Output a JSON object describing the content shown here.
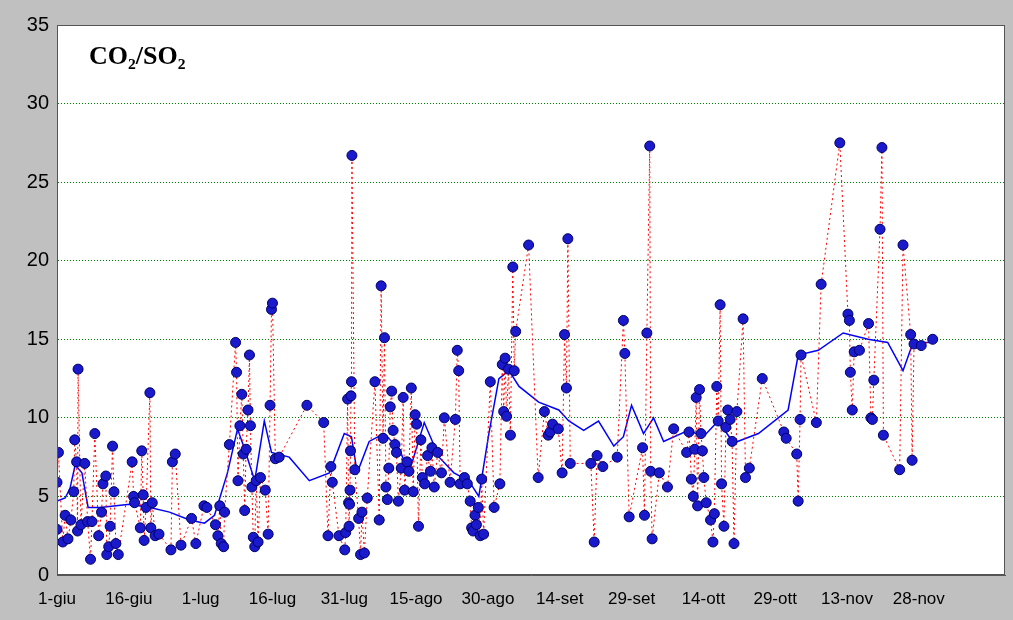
{
  "chart_data": {
    "type": "scatter",
    "title": "CO₂/SO₂",
    "xlim": [
      0,
      198
    ],
    "xticks": [
      {
        "value": 0,
        "label": "1-giu"
      },
      {
        "value": 15,
        "label": "16-giu"
      },
      {
        "value": 30,
        "label": "1-lug"
      },
      {
        "value": 45,
        "label": "16-lug"
      },
      {
        "value": 60,
        "label": "31-lug"
      },
      {
        "value": 75,
        "label": "15-ago"
      },
      {
        "value": 90,
        "label": "30-ago"
      },
      {
        "value": 105,
        "label": "14-set"
      },
      {
        "value": 120,
        "label": "29-set"
      },
      {
        "value": 135,
        "label": "14-ott"
      },
      {
        "value": 150,
        "label": "29-ott"
      },
      {
        "value": 165,
        "label": "13-nov"
      },
      {
        "value": 180,
        "label": "28-nov"
      }
    ],
    "ylim": [
      0,
      35
    ],
    "yticks": [
      0,
      5,
      10,
      15,
      20,
      25,
      30,
      35
    ],
    "grid": true,
    "series": [
      {
        "type": "scatter",
        "color": "#1a1acc",
        "marker": "circle",
        "line_style": "dotted",
        "x": [
          0,
          0,
          0.3,
          1.2,
          1.7,
          2.3,
          2.9,
          3.5,
          3.7,
          4.1,
          4.3,
          4.4,
          5.0,
          5.8,
          6.4,
          7.0,
          7.3,
          7.9,
          8.7,
          9.3,
          9.6,
          10.2,
          10.4,
          10.8,
          11.1,
          11.6,
          11.9,
          12.3,
          12.8,
          15.7,
          16.0,
          16.2,
          17.4,
          17.7,
          18.0,
          18.2,
          18.6,
          19.4,
          19.6,
          19.9,
          20.5,
          21.3,
          23.8,
          24.1,
          24.7,
          25.9,
          28.1,
          29.0,
          30.7,
          31.3,
          33.1,
          33.6,
          34.0,
          34.3,
          34.8,
          35.0,
          36.0,
          37.3,
          37.5,
          37.8,
          38.2,
          38.6,
          38.9,
          39.2,
          39.5,
          39.9,
          40.2,
          40.4,
          40.7,
          41.0,
          41.3,
          41.6,
          42.0,
          42.5,
          43.5,
          44.1,
          44.5,
          44.8,
          45.0,
          45.6,
          46.4,
          52.2,
          55.7,
          56.6,
          57.2,
          57.5,
          58.9,
          60.1,
          60.3,
          60.7,
          60.9,
          61.0,
          61.1,
          61.2,
          61.3,
          61.4,
          61.5,
          61.6,
          62.2,
          63.0,
          63.4,
          63.7,
          64.2,
          64.8,
          66.4,
          67.3,
          67.7,
          68.1,
          68.4,
          68.7,
          69.0,
          69.3,
          69.6,
          69.9,
          70.2,
          70.6,
          70.9,
          71.3,
          71.9,
          72.3,
          72.6,
          73.1,
          73.5,
          74.0,
          74.4,
          74.8,
          75.1,
          75.5,
          76.0,
          76.3,
          76.8,
          77.4,
          78.0,
          78.3,
          78.8,
          79.5,
          80.3,
          80.9,
          82.1,
          83.2,
          83.6,
          83.9,
          84.2,
          85.1,
          85.7,
          86.3,
          86.6,
          86.9,
          87.3,
          87.6,
          88.0,
          88.4,
          88.7,
          89.1,
          90.5,
          91.3,
          92.5,
          93.0,
          93.3,
          93.6,
          93.9,
          94.3,
          94.7,
          95.2,
          95.5,
          95.8,
          98.5,
          100.5,
          101.8,
          102.6,
          103.0,
          103.5,
          104.7,
          105.5,
          106.0,
          106.4,
          106.7,
          107.2,
          111.5,
          112.2,
          112.8,
          114.0,
          117.0,
          118.3,
          118.6,
          119.5,
          122.3,
          122.7,
          123.2,
          123.8,
          124.0,
          124.3,
          125.8,
          127.5,
          128.8,
          131.5,
          132.0,
          132.5,
          132.9,
          133.2,
          133.5,
          133.8,
          134.2,
          134.5,
          134.8,
          135.1,
          135.6,
          136.5,
          137.0,
          137.3,
          137.8,
          138.1,
          138.5,
          138.8,
          139.3,
          139.7,
          140.1,
          140.6,
          141.0,
          141.4,
          142.0,
          143.3,
          143.8,
          144.6,
          147.3,
          151.8,
          152.3,
          154.5,
          154.8,
          155.2,
          155.4,
          158.6,
          159.6,
          163.5,
          165.2,
          165.5,
          165.7,
          166.1,
          166.5,
          167.6,
          169.5,
          170.0,
          170.3,
          170.6,
          171.9,
          172.3,
          172.6,
          176.0,
          176.7,
          178.3,
          178.6,
          179.0,
          180.5,
          182.9
        ],
        "values": [
          2.9,
          5.9,
          7.8,
          2.1,
          3.8,
          2.3,
          3.5,
          5.3,
          8.6,
          7.2,
          2.8,
          13.1,
          3.2,
          7.1,
          3.4,
          1.0,
          3.4,
          9.0,
          2.5,
          4.0,
          5.8,
          6.3,
          1.3,
          1.8,
          3.1,
          8.2,
          5.3,
          2.0,
          1.3,
          7.2,
          5.0,
          4.6,
          3.0,
          7.9,
          5.1,
          2.2,
          4.3,
          11.6,
          3.0,
          4.6,
          2.5,
          2.6,
          1.6,
          7.2,
          7.7,
          1.9,
          3.6,
          2.0,
          4.4,
          4.3,
          3.2,
          2.5,
          4.4,
          2.0,
          1.8,
          4.0,
          8.3,
          14.8,
          12.9,
          6.0,
          9.5,
          11.5,
          7.7,
          4.1,
          8.0,
          10.5,
          14.0,
          9.5,
          5.6,
          2.4,
          1.8,
          6.0,
          2.1,
          6.2,
          5.4,
          2.6,
          10.8,
          16.9,
          17.3,
          7.4,
          7.5,
          10.8,
          9.7,
          2.5,
          6.9,
          5.9,
          2.5,
          1.6,
          2.7,
          11.2,
          4.6,
          3.1,
          4.5,
          5.4,
          7.9,
          11.4,
          12.3,
          26.7,
          6.7,
          3.6,
          1.3,
          4.0,
          1.4,
          4.9,
          12.3,
          3.5,
          18.4,
          8.7,
          15.1,
          5.6,
          4.8,
          6.8,
          10.7,
          11.7,
          9.2,
          8.3,
          7.8,
          4.7,
          6.8,
          11.3,
          5.4,
          7.2,
          6.6,
          11.9,
          5.3,
          10.2,
          9.6,
          3.1,
          8.6,
          6.2,
          5.8,
          7.6,
          6.6,
          8.1,
          5.6,
          7.8,
          6.5,
          10.0,
          5.9,
          9.9,
          14.3,
          13.0,
          5.8,
          6.2,
          5.8,
          4.7,
          3.0,
          2.8,
          3.8,
          3.2,
          4.3,
          2.5,
          6.1,
          2.6,
          12.3,
          4.3,
          5.8,
          13.4,
          10.4,
          13.8,
          10.1,
          13.1,
          8.9,
          19.6,
          13.0,
          15.5,
          21.0,
          6.2,
          10.4,
          8.9,
          9.1,
          9.6,
          9.3,
          6.5,
          15.3,
          11.9,
          21.4,
          7.1,
          7.1,
          2.1,
          7.6,
          6.9,
          7.5,
          16.2,
          14.1,
          3.7,
          8.1,
          3.8,
          15.4,
          27.3,
          6.6,
          2.3,
          6.5,
          5.6,
          9.3,
          7.8,
          9.1,
          6.1,
          5.0,
          8.0,
          11.3,
          4.4,
          11.8,
          9.0,
          7.9,
          6.2,
          4.6,
          3.5,
          2.1,
          3.9,
          12.0,
          9.8,
          17.2,
          5.8,
          3.1,
          9.4,
          10.5,
          9.9,
          8.5,
          2.0,
          10.4,
          16.3,
          6.2,
          6.8,
          12.5,
          9.1,
          8.7,
          7.7,
          4.7,
          9.9,
          14.0,
          9.7,
          18.5,
          27.5,
          16.6,
          16.2,
          12.9,
          10.5,
          14.2,
          14.3,
          16.0,
          10.0,
          9.9,
          12.4,
          22.0,
          27.2,
          8.9,
          6.7,
          21.0,
          15.3,
          7.3,
          14.7,
          14.6,
          15.0
        ]
      },
      {
        "type": "line",
        "color": "#0000ff",
        "marker": "none",
        "line_style": "solid",
        "x": [
          0,
          1.7,
          2.7,
          3.8,
          5.2,
          6.5,
          9.0,
          15.2,
          19.4,
          23.5,
          27.7,
          30.8,
          32.9,
          35.6,
          37.7,
          39.2,
          41.3,
          43.3,
          44.8,
          48.5,
          52.7,
          56.9,
          60,
          61.5,
          62.7,
          65.2,
          68.3,
          71.5,
          73.5,
          76.7,
          79.8,
          82.9,
          86,
          88.1,
          90.2,
          92.3,
          94.4,
          96.5,
          100.6,
          104.8,
          106.9,
          110,
          113.1,
          116.3,
          118.3,
          120,
          122.5,
          124.6,
          126.7,
          131.9,
          135,
          138.1,
          141.3,
          146.5,
          152.7,
          154.8,
          159,
          164.2,
          169.4,
          173.5,
          176.7,
          178.8,
          182.9
        ],
        "values": [
          4.7,
          4.9,
          5.5,
          7.0,
          6.5,
          4.3,
          4.3,
          4.5,
          4.3,
          4.0,
          3.5,
          3.3,
          3.8,
          6.5,
          9.3,
          8.0,
          6.0,
          9.8,
          7.8,
          7.5,
          6.0,
          6.5,
          9.0,
          8.8,
          6.5,
          8.5,
          9.0,
          8.0,
          6.5,
          9.7,
          7.5,
          6.5,
          6.0,
          5.0,
          9.0,
          12.5,
          13.0,
          12.0,
          11.0,
          10.5,
          9.8,
          9.2,
          9.8,
          8.2,
          8.8,
          10.8,
          9.0,
          10.0,
          8.5,
          9.2,
          8.8,
          9.8,
          8.4,
          9.0,
          10.5,
          14.0,
          14.3,
          15.4,
          15.0,
          14.8,
          13.0,
          14.8,
          14.8
        ]
      }
    ]
  }
}
